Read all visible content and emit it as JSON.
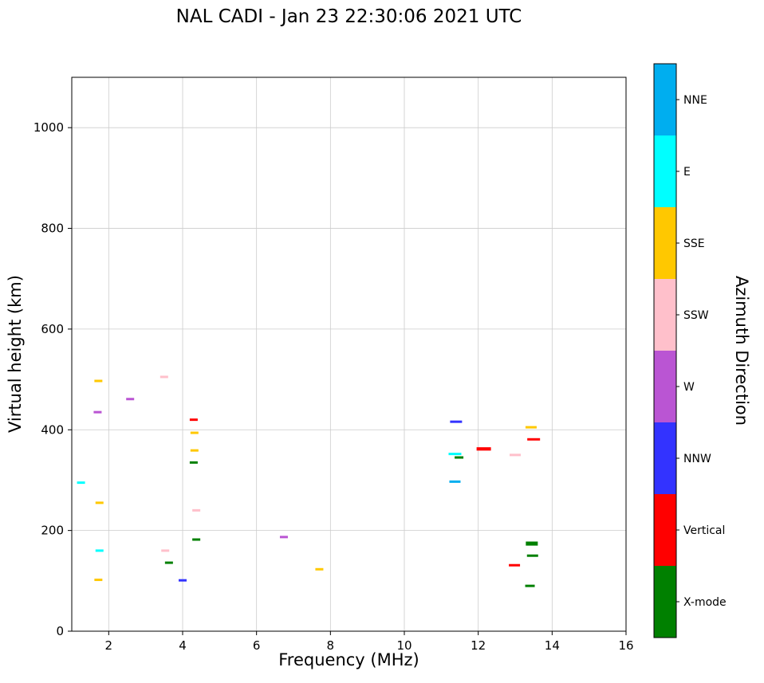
{
  "chart_data": {
    "type": "scatter",
    "title": "NAL CADI - Jan 23 22:30:06 2021 UTC",
    "xlabel": "Frequency (MHz)",
    "ylabel": "Virtual height (km)",
    "xlim": [
      1,
      16
    ],
    "ylim": [
      0,
      1100
    ],
    "xticks": [
      2,
      4,
      6,
      8,
      10,
      12,
      14,
      16
    ],
    "yticks": [
      0,
      200,
      400,
      600,
      800,
      1000
    ],
    "grid": true,
    "marker": "horizontal-dash",
    "grid_color": "#cccccc",
    "colorbar_title": "Azimuth Direction",
    "categories": [
      {
        "label": "NNE",
        "color": "#00AEEF"
      },
      {
        "label": "E",
        "color": "#00FFFF"
      },
      {
        "label": "SSE",
        "color": "#FFC800"
      },
      {
        "label": "SSW",
        "color": "#FFC0CB"
      },
      {
        "label": "W",
        "color": "#BA55D3"
      },
      {
        "label": "NNW",
        "color": "#3333FF"
      },
      {
        "label": "Vertical",
        "color": "#FF0000"
      },
      {
        "label": "X-mode",
        "color": "#008000"
      }
    ],
    "points": [
      {
        "x": 1.25,
        "y": 295,
        "dir": "E"
      },
      {
        "x": 1.72,
        "y": 497,
        "dir": "SSE"
      },
      {
        "x": 1.7,
        "y": 435,
        "dir": "W"
      },
      {
        "x": 1.75,
        "y": 255,
        "dir": "SSE"
      },
      {
        "x": 1.75,
        "y": 160,
        "dir": "E"
      },
      {
        "x": 1.72,
        "y": 102,
        "dir": "SSE"
      },
      {
        "x": 2.58,
        "y": 461,
        "dir": "W"
      },
      {
        "x": 3.5,
        "y": 505,
        "dir": "SSW"
      },
      {
        "x": 3.53,
        "y": 160,
        "dir": "SSW"
      },
      {
        "x": 3.63,
        "y": 136,
        "dir": "X-mode"
      },
      {
        "x": 4.0,
        "y": 101,
        "dir": "NNW"
      },
      {
        "x": 4.3,
        "y": 420,
        "dir": "Vertical"
      },
      {
        "x": 4.32,
        "y": 394,
        "dir": "SSE"
      },
      {
        "x": 4.32,
        "y": 359,
        "dir": "SSE"
      },
      {
        "x": 4.3,
        "y": 335,
        "dir": "X-mode"
      },
      {
        "x": 4.37,
        "y": 240,
        "dir": "SSW"
      },
      {
        "x": 4.37,
        "y": 182,
        "dir": "X-mode"
      },
      {
        "x": 6.74,
        "y": 187,
        "dir": "W"
      },
      {
        "x": 7.7,
        "y": 123,
        "dir": "SSE"
      },
      {
        "x": 11.4,
        "y": 416,
        "dir": "NNW",
        "w": 1.5
      },
      {
        "x": 11.37,
        "y": 352,
        "dir": "E",
        "w": 1.6
      },
      {
        "x": 11.48,
        "y": 345,
        "dir": "X-mode",
        "w": 1.1
      },
      {
        "x": 11.37,
        "y": 297,
        "dir": "NNE",
        "w": 1.4
      },
      {
        "x": 12.15,
        "y": 362,
        "dir": "Vertical",
        "w": 1.8,
        "h": 1.4
      },
      {
        "x": 13.0,
        "y": 350,
        "dir": "SSW",
        "w": 1.4
      },
      {
        "x": 12.98,
        "y": 131,
        "dir": "Vertical",
        "w": 1.4
      },
      {
        "x": 13.43,
        "y": 405,
        "dir": "SSE",
        "w": 1.4
      },
      {
        "x": 13.5,
        "y": 381,
        "dir": "Vertical",
        "w": 1.6
      },
      {
        "x": 13.45,
        "y": 174,
        "dir": "X-mode",
        "w": 1.5,
        "h": 1.7
      },
      {
        "x": 13.47,
        "y": 150,
        "dir": "X-mode",
        "w": 1.4
      },
      {
        "x": 13.4,
        "y": 90,
        "dir": "X-mode",
        "w": 1.2
      }
    ]
  }
}
